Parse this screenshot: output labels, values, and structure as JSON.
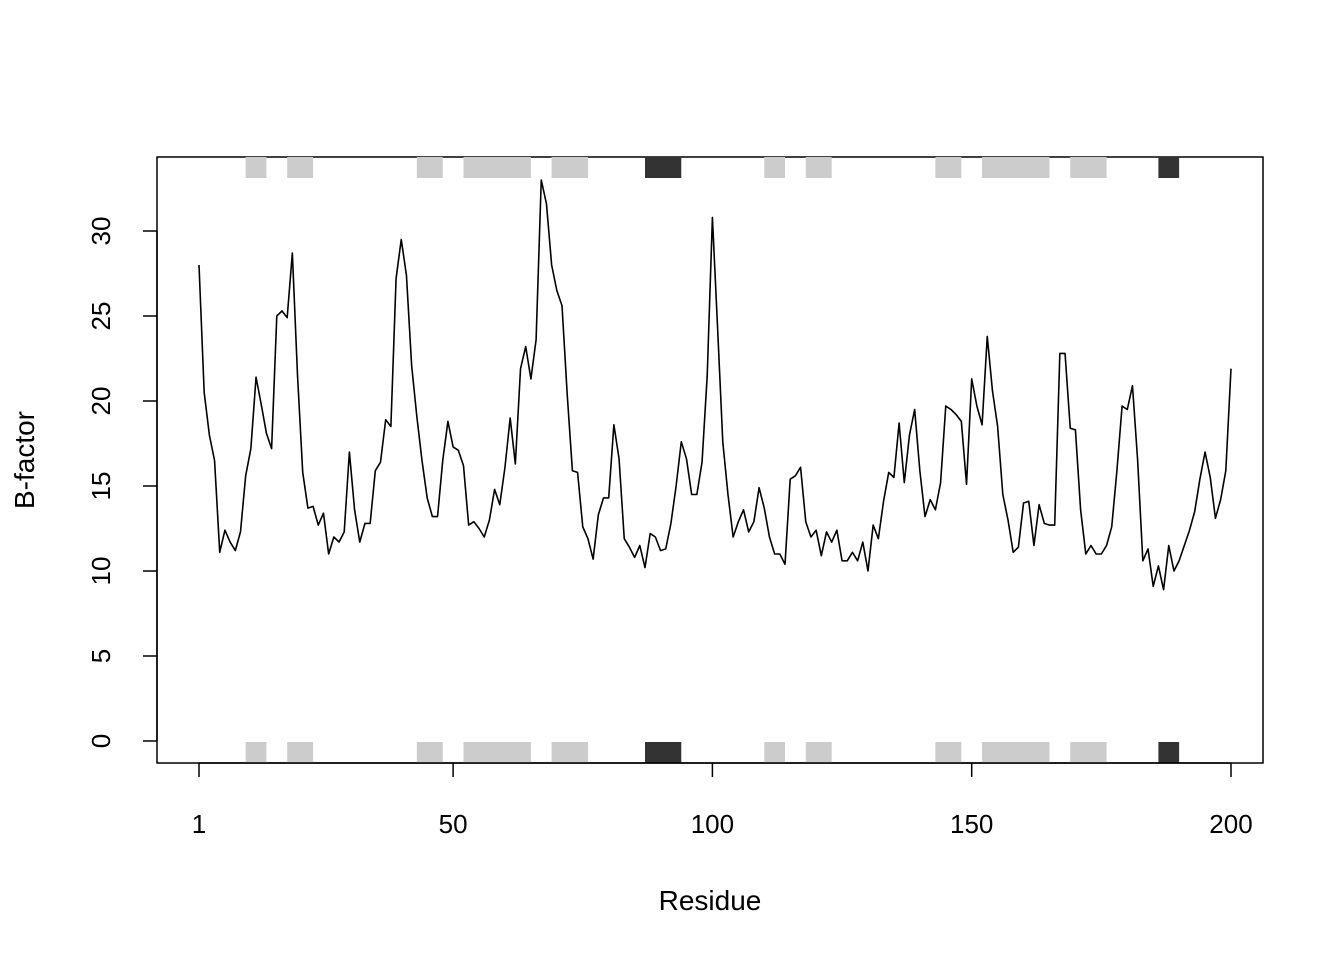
{
  "chart_data": {
    "type": "line",
    "xlabel": "Residue",
    "ylabel": "B-factor",
    "xlim": [
      1,
      200
    ],
    "ylim": [
      0,
      33
    ],
    "x_ticks": [
      1,
      50,
      100,
      150,
      200
    ],
    "y_ticks": [
      0,
      5,
      10,
      15,
      20,
      25,
      30
    ],
    "grid": false,
    "line_color": "#000000",
    "series": [
      {
        "values": [
          28.0,
          20.5,
          18.0,
          16.5,
          11.1,
          12.4,
          11.7,
          11.2,
          12.3,
          15.6,
          17.2,
          21.4,
          19.8,
          18.1,
          17.2,
          25.0,
          25.3,
          24.9,
          28.7,
          21.5,
          15.8,
          13.7,
          13.8,
          12.7,
          13.4,
          11.0,
          12.0,
          11.7,
          12.3,
          17.0,
          13.6,
          11.7,
          12.8,
          12.8,
          15.9,
          16.4,
          18.9,
          18.5,
          27.2,
          29.5,
          27.4,
          22.1,
          19.1,
          16.5,
          14.3,
          13.2,
          13.2,
          16.5,
          18.8,
          17.3,
          17.1,
          16.2,
          12.7,
          12.9,
          12.5,
          12.0,
          13.0,
          14.8,
          13.9,
          16.1,
          19.0,
          16.3,
          21.9,
          23.2,
          21.3,
          23.6,
          33.0,
          31.6,
          28.0,
          26.5,
          25.6,
          20.4,
          15.9,
          15.8,
          12.6,
          11.9,
          10.7,
          13.3,
          14.3,
          14.3,
          18.6,
          16.6,
          11.9,
          11.4,
          10.8,
          11.5,
          10.2,
          12.2,
          12.0,
          11.2,
          11.3,
          12.8,
          15.0,
          17.6,
          16.6,
          14.5,
          14.5,
          16.4,
          21.5,
          30.8,
          24.3,
          17.6,
          14.5,
          12.0,
          12.9,
          13.6,
          12.3,
          12.9,
          14.9,
          13.7,
          12.0,
          11.0,
          11.0,
          10.4,
          15.4,
          15.6,
          16.1,
          12.9,
          12.0,
          12.4,
          10.9,
          12.3,
          11.7,
          12.4,
          10.6,
          10.6,
          11.1,
          10.6,
          11.7,
          10.0,
          12.7,
          11.9,
          14.1,
          15.8,
          15.5,
          18.7,
          15.2,
          18.0,
          19.5,
          15.9,
          13.2,
          14.2,
          13.6,
          15.2,
          19.7,
          19.5,
          19.2,
          18.8,
          15.1,
          21.3,
          19.7,
          18.6,
          23.8,
          20.6,
          18.5,
          14.5,
          13.0,
          11.1,
          11.4,
          14.0,
          14.1,
          11.5,
          13.9,
          12.8,
          12.7,
          12.7,
          22.8,
          22.8,
          18.4,
          18.3,
          13.6,
          11.0,
          11.5,
          11.0,
          11.0,
          11.5,
          12.6,
          15.9,
          19.7,
          19.5,
          20.9,
          16.5,
          10.6,
          11.3,
          9.1,
          10.3,
          8.9,
          11.5,
          10.0,
          10.6,
          11.5,
          12.4,
          13.5,
          15.4,
          17.0,
          15.5,
          13.1,
          14.2,
          15.9,
          21.9
        ]
      }
    ],
    "sse_segments": [
      {
        "start": 10,
        "end": 14,
        "kind": "strand",
        "color": "#cccccc"
      },
      {
        "start": 18,
        "end": 23,
        "kind": "strand",
        "color": "#cccccc"
      },
      {
        "start": 43,
        "end": 48,
        "kind": "strand",
        "color": "#cccccc"
      },
      {
        "start": 52,
        "end": 65,
        "kind": "strand",
        "color": "#cccccc"
      },
      {
        "start": 69,
        "end": 76,
        "kind": "strand",
        "color": "#cccccc"
      },
      {
        "start": 87,
        "end": 94,
        "kind": "helix",
        "color": "#333333"
      },
      {
        "start": 110,
        "end": 114,
        "kind": "strand",
        "color": "#cccccc"
      },
      {
        "start": 118,
        "end": 123,
        "kind": "strand",
        "color": "#cccccc"
      },
      {
        "start": 143,
        "end": 148,
        "kind": "strand",
        "color": "#cccccc"
      },
      {
        "start": 152,
        "end": 165,
        "kind": "strand",
        "color": "#cccccc"
      },
      {
        "start": 169,
        "end": 176,
        "kind": "strand",
        "color": "#cccccc"
      },
      {
        "start": 186,
        "end": 190,
        "kind": "helix",
        "color": "#333333"
      }
    ]
  }
}
